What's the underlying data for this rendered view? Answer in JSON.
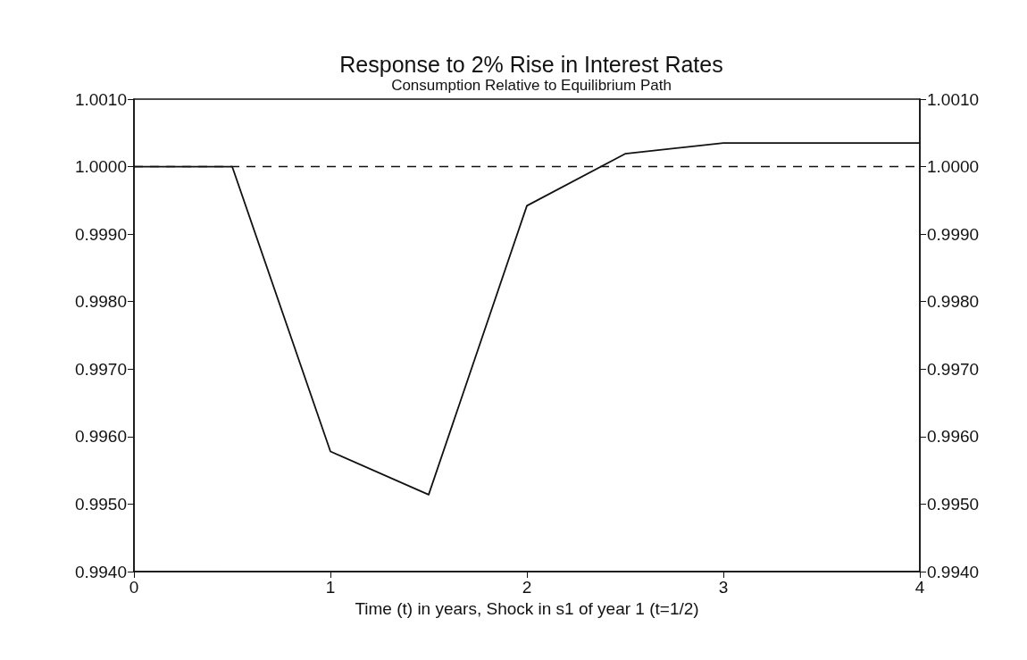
{
  "chart_data": {
    "type": "line",
    "title": "Response to 2% Rise in Interest Rates",
    "subtitle": "Consumption Relative to Equilibrium Path",
    "xlabel": "Time (t) in years, Shock in s1 of year 1 (t=1/2)",
    "x": [
      0,
      0.5,
      1,
      1.5,
      2,
      2.5,
      3,
      3.5,
      4
    ],
    "series": [
      {
        "color": "#111111",
        "values": [
          1.0,
          1.0,
          0.99578,
          0.99514,
          0.99942,
          1.00019,
          1.00035,
          1.00035,
          1.00035
        ]
      }
    ],
    "xlim": [
      0,
      4
    ],
    "xticks": [
      0,
      1,
      2,
      3,
      4
    ],
    "ylim": [
      0.994,
      1.001
    ],
    "yticks": [
      {
        "value": 0.994,
        "label": "0.9940"
      },
      {
        "value": 0.995,
        "label": "0.9950"
      },
      {
        "value": 0.996,
        "label": "0.9960"
      },
      {
        "value": 0.997,
        "label": "0.9970"
      },
      {
        "value": 0.998,
        "label": "0.9980"
      },
      {
        "value": 0.999,
        "label": "0.9990"
      },
      {
        "value": 1.0,
        "label": "1.0000"
      },
      {
        "value": 1.001,
        "label": "1.0010"
      }
    ],
    "y2lim": [
      0.994,
      1.001
    ],
    "y2ticks": [
      {
        "value": 0.994,
        "label": "0.9940"
      },
      {
        "value": 0.995,
        "label": "0.9950"
      },
      {
        "value": 0.996,
        "label": "0.9960"
      },
      {
        "value": 0.997,
        "label": "0.9970"
      },
      {
        "value": 0.998,
        "label": "0.9980"
      },
      {
        "value": 0.999,
        "label": "0.9990"
      },
      {
        "value": 1.0,
        "label": "1.0000"
      },
      {
        "value": 1.001,
        "label": "1.0010"
      }
    ],
    "ref_lines": [
      {
        "axis": "y",
        "value": 1.0,
        "color": "#111111",
        "line_style": "dashed"
      }
    ],
    "grid": false,
    "marker": "none",
    "line_style": "solid"
  }
}
